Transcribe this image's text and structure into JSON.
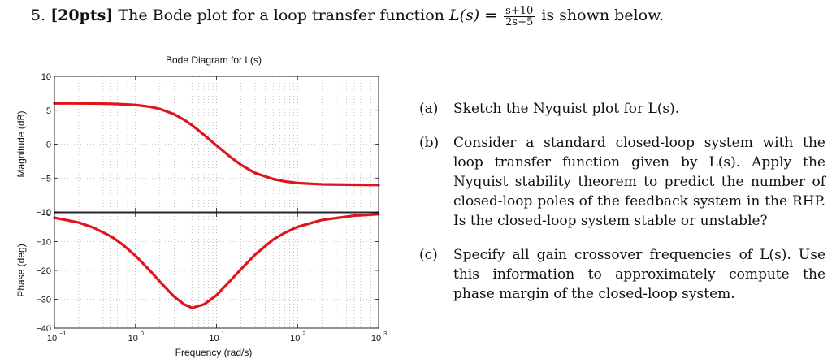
{
  "header": {
    "number": "5.",
    "points": "[20pts]",
    "text_before": "The Bode plot for a loop transfer function",
    "func": "L(s) =",
    "numerator": "s+10",
    "denominator": "2s+5",
    "text_after": "is shown below."
  },
  "questions": [
    {
      "label": "(a)",
      "text": "Sketch the Nyquist plot for L(s)."
    },
    {
      "label": "(b)",
      "text": "Consider a standard closed-loop system with the loop transfer function given by L(s). Apply the Nyquist stability theorem to predict the number of closed-loop poles of the feedback system in the RHP. Is the closed-loop system stable or unstable?"
    },
    {
      "label": "(c)",
      "text": "Specify all gain crossover frequencies of L(s). Use this information to approximately compute the phase margin of the closed-loop system."
    }
  ],
  "chart_data": {
    "type": "line",
    "title": "Bode Diagram for L(s)",
    "xlabel": "Frequency  (rad/s)",
    "x_scale": "log",
    "xlim": [
      0.1,
      1000
    ],
    "x_ticks": [
      0.1,
      1,
      10,
      100,
      1000
    ],
    "x_tick_labels": [
      "10",
      "10",
      "10",
      "10",
      "10"
    ],
    "x_tick_exponents": [
      "−1",
      "0",
      "1",
      "2",
      "3"
    ],
    "line_color": "#e0141e",
    "grid": true,
    "panels": [
      {
        "name": "magnitude",
        "ylabel": "Magnitude (dB)",
        "ylim": [
          -10,
          10
        ],
        "y_ticks": [
          10,
          5,
          0,
          -5,
          -10
        ],
        "y_tick_labels": [
          "10",
          "5",
          "0",
          "−5",
          "−10"
        ],
        "series": [
          {
            "x": [
              0.1,
              0.2,
              0.3,
              0.5,
              0.7,
              1,
              1.5,
              2,
              3,
              4,
              5,
              7,
              10,
              15,
              20,
              30,
              50,
              70,
              100,
              200,
              500,
              1000
            ],
            "y": [
              6.02,
              6.01,
              6.0,
              5.95,
              5.88,
              5.78,
              5.52,
              5.2,
              4.41,
              3.58,
              2.78,
              1.38,
              -0.2,
              -1.94,
              -3.05,
              -4.26,
              -5.15,
              -5.5,
              -5.73,
              -5.93,
              -5.99,
              -6.02
            ]
          }
        ]
      },
      {
        "name": "phase",
        "ylabel": "Phase (deg)",
        "ylim": [
          -40,
          0
        ],
        "y_ticks": [
          0,
          -10,
          -20,
          -30,
          -40
        ],
        "y_tick_labels": [
          "0",
          "−10",
          "−20",
          "−30",
          "−40"
        ],
        "series": [
          {
            "x": [
              0.1,
              0.2,
              0.3,
              0.5,
              0.7,
              1,
              1.5,
              2,
              3,
              4,
              5,
              7,
              10,
              15,
              20,
              30,
              50,
              70,
              100,
              200,
              500,
              1000
            ],
            "y": [
              -1.7,
              -3.4,
              -5.1,
              -8.2,
              -11.1,
              -14.9,
              -20.0,
              -23.9,
              -29.1,
              -31.8,
              -33.0,
              -31.8,
              -28.6,
              -23.4,
              -19.6,
              -14.5,
              -9.3,
              -6.9,
              -4.9,
              -2.5,
              -1.0,
              -0.5
            ]
          }
        ]
      }
    ]
  }
}
